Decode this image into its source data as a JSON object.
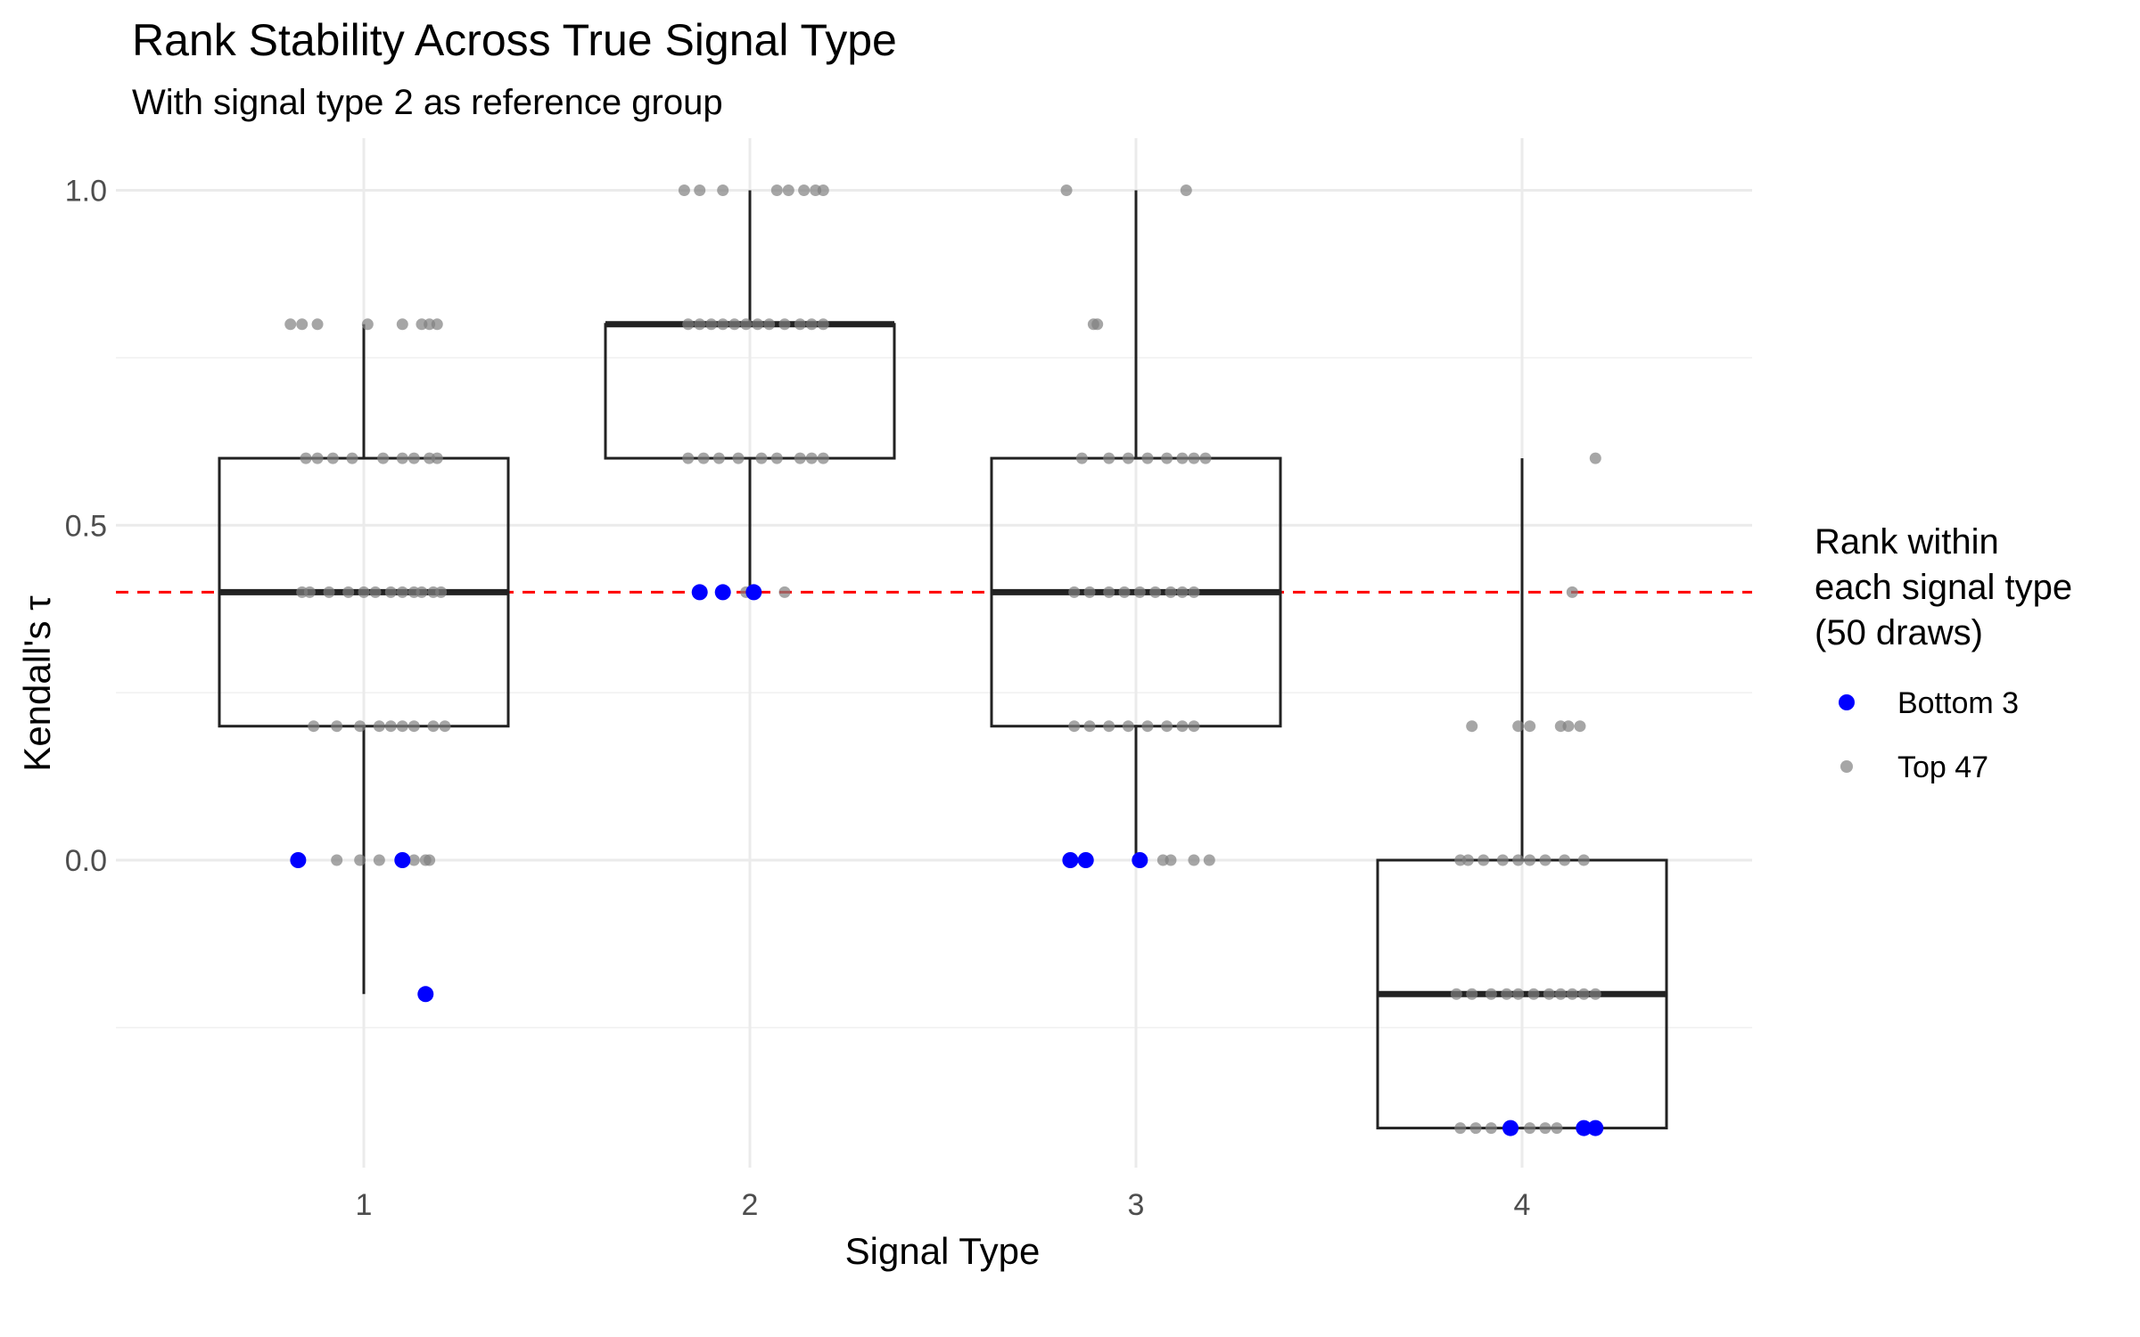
{
  "chart_data": {
    "type": "box",
    "title": "Rank Stability Across True Signal Type",
    "subtitle": "With signal type 2 as reference group",
    "xlabel": "Signal Type",
    "ylabel": "Kendall's τ",
    "categories": [
      "1",
      "2",
      "3",
      "4"
    ],
    "y_ticks": [
      "0.0",
      "0.5",
      "1.0"
    ],
    "y_tick_values": [
      0.0,
      0.5,
      1.0
    ],
    "ylim": [
      -0.46,
      1.06
    ],
    "reference_line": {
      "y": 0.4,
      "style": "dashed",
      "color": "#ff0000"
    },
    "legend": {
      "title_lines": [
        "Rank within",
        "each signal type",
        "(50 draws)"
      ],
      "placement": "right",
      "entries": [
        {
          "label": "Bottom 3",
          "color": "#0000ff"
        },
        {
          "label": "Top 47",
          "color": "#808080"
        }
      ]
    },
    "boxes": [
      {
        "category": "1",
        "whisker_low": -0.2,
        "q1": 0.2,
        "median": 0.4,
        "q3": 0.6,
        "whisker_high": 0.8
      },
      {
        "category": "2",
        "whisker_low": 0.4,
        "q1": 0.6,
        "median": 0.8,
        "q3": 0.8,
        "whisker_high": 1.0
      },
      {
        "category": "3",
        "whisker_low": 0.0,
        "q1": 0.2,
        "median": 0.4,
        "q3": 0.6,
        "whisker_high": 1.0
      },
      {
        "category": "4",
        "whisker_low": -0.4,
        "q1": -0.4,
        "median": -0.2,
        "q3": 0.0,
        "whisker_high": 0.6
      }
    ],
    "points": {
      "bottom_3": [
        {
          "x": 0.83,
          "y": 0.0
        },
        {
          "x": 1.1,
          "y": 0.0
        },
        {
          "x": 1.16,
          "y": -0.2
        },
        {
          "x": 1.87,
          "y": 0.4
        },
        {
          "x": 1.93,
          "y": 0.4
        },
        {
          "x": 2.01,
          "y": 0.4
        },
        {
          "x": 2.83,
          "y": 0.0
        },
        {
          "x": 2.87,
          "y": 0.0
        },
        {
          "x": 3.01,
          "y": 0.0
        },
        {
          "x": 3.97,
          "y": -0.4
        },
        {
          "x": 4.16,
          "y": -0.4
        },
        {
          "x": 4.19,
          "y": -0.4
        }
      ],
      "top_47": [
        {
          "x": 0.81,
          "y": 0.8
        },
        {
          "x": 0.84,
          "y": 0.8
        },
        {
          "x": 0.88,
          "y": 0.8
        },
        {
          "x": 1.01,
          "y": 0.8
        },
        {
          "x": 1.1,
          "y": 0.8
        },
        {
          "x": 1.15,
          "y": 0.8
        },
        {
          "x": 1.17,
          "y": 0.8
        },
        {
          "x": 1.19,
          "y": 0.8
        },
        {
          "x": 0.85,
          "y": 0.6
        },
        {
          "x": 0.88,
          "y": 0.6
        },
        {
          "x": 0.92,
          "y": 0.6
        },
        {
          "x": 0.97,
          "y": 0.6
        },
        {
          "x": 1.05,
          "y": 0.6
        },
        {
          "x": 1.1,
          "y": 0.6
        },
        {
          "x": 1.13,
          "y": 0.6
        },
        {
          "x": 1.17,
          "y": 0.6
        },
        {
          "x": 1.19,
          "y": 0.6
        },
        {
          "x": 0.84,
          "y": 0.4
        },
        {
          "x": 0.86,
          "y": 0.4
        },
        {
          "x": 0.91,
          "y": 0.4
        },
        {
          "x": 0.96,
          "y": 0.4
        },
        {
          "x": 1.0,
          "y": 0.4
        },
        {
          "x": 1.03,
          "y": 0.4
        },
        {
          "x": 1.07,
          "y": 0.4
        },
        {
          "x": 1.1,
          "y": 0.4
        },
        {
          "x": 1.13,
          "y": 0.4
        },
        {
          "x": 1.15,
          "y": 0.4
        },
        {
          "x": 1.18,
          "y": 0.4
        },
        {
          "x": 1.2,
          "y": 0.4
        },
        {
          "x": 0.87,
          "y": 0.2
        },
        {
          "x": 0.93,
          "y": 0.2
        },
        {
          "x": 0.99,
          "y": 0.2
        },
        {
          "x": 1.04,
          "y": 0.2
        },
        {
          "x": 1.07,
          "y": 0.2
        },
        {
          "x": 1.1,
          "y": 0.2
        },
        {
          "x": 1.13,
          "y": 0.2
        },
        {
          "x": 1.18,
          "y": 0.2
        },
        {
          "x": 1.21,
          "y": 0.2
        },
        {
          "x": 0.93,
          "y": 0.0
        },
        {
          "x": 0.99,
          "y": 0.0
        },
        {
          "x": 1.04,
          "y": 0.0
        },
        {
          "x": 1.13,
          "y": 0.0
        },
        {
          "x": 1.16,
          "y": 0.0
        },
        {
          "x": 1.17,
          "y": 0.0
        },
        {
          "x": 1.83,
          "y": 1.0
        },
        {
          "x": 1.87,
          "y": 1.0
        },
        {
          "x": 1.93,
          "y": 1.0
        },
        {
          "x": 2.07,
          "y": 1.0
        },
        {
          "x": 2.1,
          "y": 1.0
        },
        {
          "x": 2.14,
          "y": 1.0
        },
        {
          "x": 2.17,
          "y": 1.0
        },
        {
          "x": 2.19,
          "y": 1.0
        },
        {
          "x": 1.84,
          "y": 0.8
        },
        {
          "x": 1.87,
          "y": 0.8
        },
        {
          "x": 1.9,
          "y": 0.8
        },
        {
          "x": 1.93,
          "y": 0.8
        },
        {
          "x": 1.96,
          "y": 0.8
        },
        {
          "x": 1.99,
          "y": 0.8
        },
        {
          "x": 2.02,
          "y": 0.8
        },
        {
          "x": 2.05,
          "y": 0.8
        },
        {
          "x": 2.09,
          "y": 0.8
        },
        {
          "x": 2.13,
          "y": 0.8
        },
        {
          "x": 2.16,
          "y": 0.8
        },
        {
          "x": 2.19,
          "y": 0.8
        },
        {
          "x": 1.84,
          "y": 0.6
        },
        {
          "x": 1.88,
          "y": 0.6
        },
        {
          "x": 1.92,
          "y": 0.6
        },
        {
          "x": 1.97,
          "y": 0.6
        },
        {
          "x": 2.03,
          "y": 0.6
        },
        {
          "x": 2.07,
          "y": 0.6
        },
        {
          "x": 2.13,
          "y": 0.6
        },
        {
          "x": 2.16,
          "y": 0.6
        },
        {
          "x": 2.19,
          "y": 0.6
        },
        {
          "x": 1.99,
          "y": 0.4
        },
        {
          "x": 2.09,
          "y": 0.4
        },
        {
          "x": 2.82,
          "y": 1.0
        },
        {
          "x": 3.13,
          "y": 1.0
        },
        {
          "x": 2.89,
          "y": 0.8
        },
        {
          "x": 2.9,
          "y": 0.8
        },
        {
          "x": 2.86,
          "y": 0.6
        },
        {
          "x": 2.93,
          "y": 0.6
        },
        {
          "x": 2.98,
          "y": 0.6
        },
        {
          "x": 3.03,
          "y": 0.6
        },
        {
          "x": 3.08,
          "y": 0.6
        },
        {
          "x": 3.12,
          "y": 0.6
        },
        {
          "x": 3.15,
          "y": 0.6
        },
        {
          "x": 3.18,
          "y": 0.6
        },
        {
          "x": 2.84,
          "y": 0.4
        },
        {
          "x": 2.88,
          "y": 0.4
        },
        {
          "x": 2.93,
          "y": 0.4
        },
        {
          "x": 2.97,
          "y": 0.4
        },
        {
          "x": 3.01,
          "y": 0.4
        },
        {
          "x": 3.05,
          "y": 0.4
        },
        {
          "x": 3.09,
          "y": 0.4
        },
        {
          "x": 3.12,
          "y": 0.4
        },
        {
          "x": 3.15,
          "y": 0.4
        },
        {
          "x": 2.84,
          "y": 0.2
        },
        {
          "x": 2.88,
          "y": 0.2
        },
        {
          "x": 2.93,
          "y": 0.2
        },
        {
          "x": 2.98,
          "y": 0.2
        },
        {
          "x": 3.03,
          "y": 0.2
        },
        {
          "x": 3.08,
          "y": 0.2
        },
        {
          "x": 3.12,
          "y": 0.2
        },
        {
          "x": 3.15,
          "y": 0.2
        },
        {
          "x": 3.07,
          "y": 0.0
        },
        {
          "x": 3.09,
          "y": 0.0
        },
        {
          "x": 3.15,
          "y": 0.0
        },
        {
          "x": 3.19,
          "y": 0.0
        },
        {
          "x": 4.19,
          "y": 0.6
        },
        {
          "x": 4.13,
          "y": 0.4
        },
        {
          "x": 3.87,
          "y": 0.2
        },
        {
          "x": 3.99,
          "y": 0.2
        },
        {
          "x": 4.02,
          "y": 0.2
        },
        {
          "x": 4.1,
          "y": 0.2
        },
        {
          "x": 4.12,
          "y": 0.2
        },
        {
          "x": 4.15,
          "y": 0.2
        },
        {
          "x": 3.84,
          "y": 0.0
        },
        {
          "x": 3.86,
          "y": 0.0
        },
        {
          "x": 3.9,
          "y": 0.0
        },
        {
          "x": 3.95,
          "y": 0.0
        },
        {
          "x": 3.99,
          "y": 0.0
        },
        {
          "x": 4.02,
          "y": 0.0
        },
        {
          "x": 4.06,
          "y": 0.0
        },
        {
          "x": 4.11,
          "y": 0.0
        },
        {
          "x": 4.16,
          "y": 0.0
        },
        {
          "x": 3.83,
          "y": -0.2
        },
        {
          "x": 3.87,
          "y": -0.2
        },
        {
          "x": 3.92,
          "y": -0.2
        },
        {
          "x": 3.96,
          "y": -0.2
        },
        {
          "x": 3.99,
          "y": -0.2
        },
        {
          "x": 4.03,
          "y": -0.2
        },
        {
          "x": 4.07,
          "y": -0.2
        },
        {
          "x": 4.1,
          "y": -0.2
        },
        {
          "x": 4.13,
          "y": -0.2
        },
        {
          "x": 4.16,
          "y": -0.2
        },
        {
          "x": 4.19,
          "y": -0.2
        },
        {
          "x": 3.84,
          "y": -0.4
        },
        {
          "x": 3.88,
          "y": -0.4
        },
        {
          "x": 3.92,
          "y": -0.4
        },
        {
          "x": 4.02,
          "y": -0.4
        },
        {
          "x": 4.06,
          "y": -0.4
        },
        {
          "x": 4.09,
          "y": -0.4
        }
      ]
    }
  }
}
